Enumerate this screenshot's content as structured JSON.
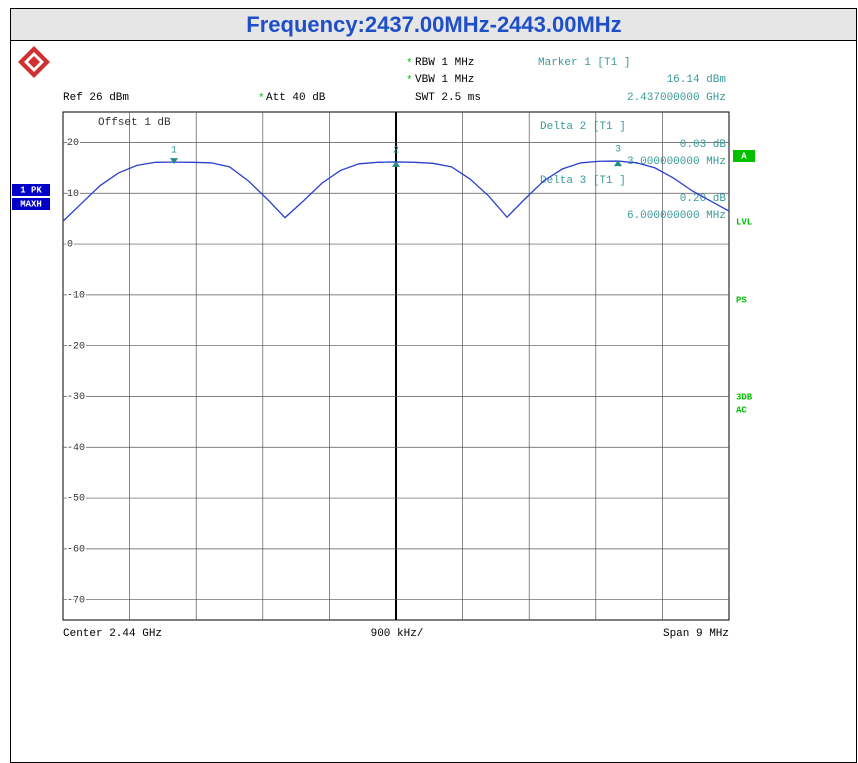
{
  "title": "Frequency:2437.00MHz-2443.00MHz",
  "settings": {
    "flag": "*",
    "rbw": "RBW 1 MHz",
    "vbw": "VBW 1 MHz",
    "swt": "SWT 2.5 ms",
    "ref": "Ref 26 dBm",
    "att": "Att 40 dB",
    "offset": "Offset 1 dB"
  },
  "marker_info": {
    "title": "Marker 1 [T1 ]",
    "level": "16.14 dBm",
    "freq": "2.437000000 GHz"
  },
  "deltas": [
    {
      "title": "Delta 2 [T1 ]",
      "level": "0.03 dB",
      "freq": "3.000000000 MHz"
    },
    {
      "title": "Delta 3 [T1 ]",
      "level": "0.20 dB",
      "freq": "6.000000000 MHz"
    }
  ],
  "side_left": [
    "1 PK",
    "MAXH"
  ],
  "side_right": {
    "box": "A",
    "labels": [
      "LVL",
      "PS",
      "3DB",
      "AC"
    ]
  },
  "footer": {
    "center": "Center 2.44 GHz",
    "div": "900 kHz/",
    "span": "Span 9 MHz"
  },
  "chart_data": {
    "type": "line",
    "x": [
      2435.5,
      2435.75,
      2436.0,
      2436.25,
      2436.5,
      2436.75,
      2437.0,
      2437.25,
      2437.5,
      2437.75,
      2438.0,
      2438.25,
      2438.5,
      2438.75,
      2439.0,
      2439.25,
      2439.5,
      2439.75,
      2440.0,
      2440.25,
      2440.5,
      2440.75,
      2441.0,
      2441.25,
      2441.5,
      2441.75,
      2442.0,
      2442.25,
      2442.5,
      2442.75,
      2443.0,
      2443.25,
      2443.5,
      2443.75,
      2444.0,
      2444.25,
      2444.5
    ],
    "series": [
      {
        "color": "#2a3fd0",
        "values": [
          4.5,
          8,
          11.5,
          14,
          15.5,
          16.1,
          16.14,
          16.1,
          16.0,
          15.2,
          12.5,
          9,
          5.2,
          8.5,
          12,
          14.5,
          15.8,
          16.1,
          16.17,
          16.1,
          15.9,
          15.2,
          12.8,
          9.5,
          5.3,
          9,
          12.5,
          14.8,
          16.0,
          16.3,
          16.34,
          16.0,
          15.0,
          13,
          10.5,
          8.5,
          6.5
        ]
      }
    ],
    "xlim": [
      2435.5,
      2444.5
    ],
    "ylim": [
      -74,
      26
    ],
    "yticks": [
      20,
      10,
      0,
      -10,
      -20,
      -30,
      -40,
      -50,
      -60,
      -70
    ],
    "grid": true,
    "markers": [
      {
        "label": "1",
        "x": 2437,
        "y": 16.14
      },
      {
        "label": "2",
        "x": 2440,
        "y": 16.17
      },
      {
        "label": "3",
        "x": 2443,
        "y": 16.34
      }
    ]
  }
}
